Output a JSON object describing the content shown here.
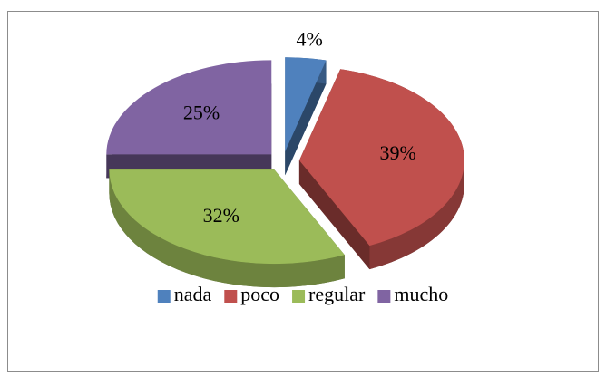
{
  "chart_data": {
    "type": "pie",
    "categories": [
      "nada",
      "poco",
      "regular",
      "mucho"
    ],
    "values": [
      4,
      39,
      32,
      25
    ],
    "value_labels": [
      "4%",
      "39%",
      "32%",
      "25%"
    ],
    "colors": [
      "#4f81bd",
      "#c0504d",
      "#9bbb59",
      "#8064a2"
    ],
    "legend": "bottom"
  }
}
